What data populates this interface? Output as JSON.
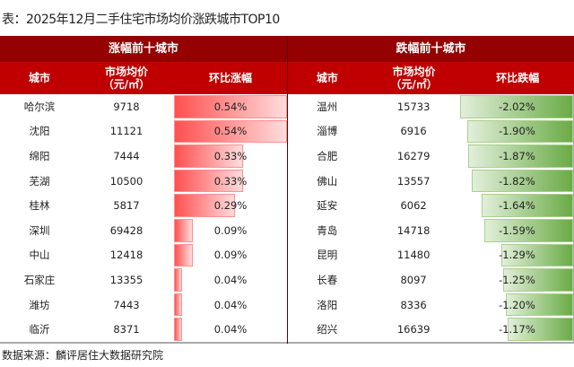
{
  "title": "表：2025年12月二手住宅市场均价涨跌城市TOP10",
  "source": "数据来源：麟评居住大数据研究院",
  "colors": {
    "header_dark": "#950000",
    "header": "#c00000",
    "rise_bar": "#ff5050",
    "fall_bar": "#6aab46"
  },
  "rise": {
    "heading": "涨幅前十城市",
    "col_city": "城市",
    "col_price": "市场均价",
    "col_price_unit": "（元/㎡）",
    "col_change": "环比涨幅",
    "rows": [
      {
        "city": "哈尔滨",
        "price": "9718",
        "change": "0.54%",
        "value": 0.54
      },
      {
        "city": "沈阳",
        "price": "11121",
        "change": "0.54%",
        "value": 0.54
      },
      {
        "city": "绵阳",
        "price": "7444",
        "change": "0.33%",
        "value": 0.33
      },
      {
        "city": "芜湖",
        "price": "10500",
        "change": "0.33%",
        "value": 0.33
      },
      {
        "city": "桂林",
        "price": "5817",
        "change": "0.29%",
        "value": 0.29
      },
      {
        "city": "深圳",
        "price": "69428",
        "change": "0.09%",
        "value": 0.09
      },
      {
        "city": "中山",
        "price": "12418",
        "change": "0.09%",
        "value": 0.09
      },
      {
        "city": "石家庄",
        "price": "13355",
        "change": "0.04%",
        "value": 0.04
      },
      {
        "city": "潍坊",
        "price": "7443",
        "change": "0.04%",
        "value": 0.04
      },
      {
        "city": "临沂",
        "price": "8371",
        "change": "0.04%",
        "value": 0.04
      }
    ]
  },
  "fall": {
    "heading": "跌幅前十城市",
    "col_city": "城市",
    "col_price": "市场均价",
    "col_price_unit": "（元/㎡）",
    "col_change": "环比跌幅",
    "rows": [
      {
        "city": "温州",
        "price": "15733",
        "change": "-2.02%",
        "value": -2.02
      },
      {
        "city": "淄博",
        "price": "6916",
        "change": "-1.90%",
        "value": -1.9
      },
      {
        "city": "合肥",
        "price": "16279",
        "change": "-1.87%",
        "value": -1.87
      },
      {
        "city": "佛山",
        "price": "13557",
        "change": "-1.82%",
        "value": -1.82
      },
      {
        "city": "延安",
        "price": "6062",
        "change": "-1.64%",
        "value": -1.64
      },
      {
        "city": "青岛",
        "price": "14718",
        "change": "-1.59%",
        "value": -1.59
      },
      {
        "city": "昆明",
        "price": "11480",
        "change": "-1.29%",
        "value": -1.29
      },
      {
        "city": "长春",
        "price": "8097",
        "change": "-1.25%",
        "value": -1.25
      },
      {
        "city": "洛阳",
        "price": "8336",
        "change": "-1.20%",
        "value": -1.2
      },
      {
        "city": "绍兴",
        "price": "16639",
        "change": "-1.17%",
        "value": -1.17
      }
    ]
  }
}
